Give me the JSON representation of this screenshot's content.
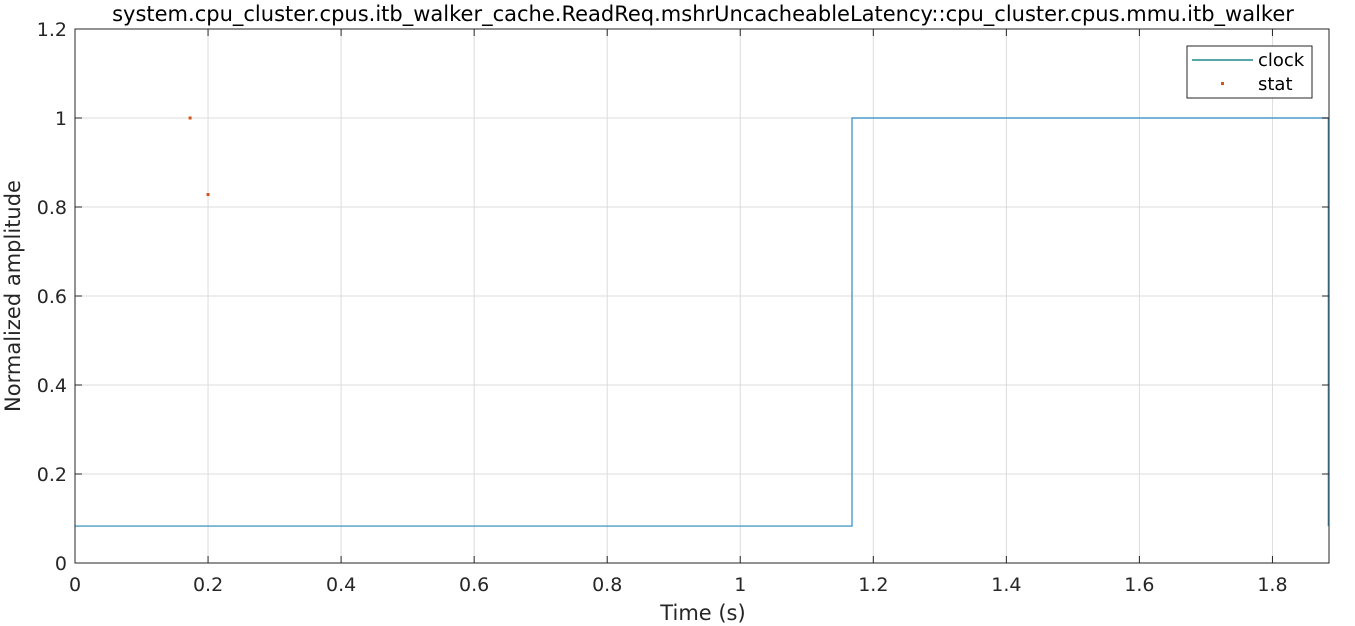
{
  "chart_data": {
    "type": "line",
    "title": "system.cpu_cluster.cpus.itb_walker_cache.ReadReq.mshrUncacheableLatency::cpu_cluster.cpus.mmu.itb_walker",
    "xlabel": "Time (s)",
    "ylabel": "Normalized amplitude",
    "xlim": [
      0,
      1.885
    ],
    "ylim": [
      0,
      1.2
    ],
    "xticks": [
      0,
      0.2,
      0.4,
      0.6,
      0.8,
      1,
      1.2,
      1.4,
      1.6,
      1.8
    ],
    "xtick_labels": [
      "0",
      "0.2",
      "0.4",
      "0.6",
      "0.8",
      "1",
      "1.2",
      "1.4",
      "1.6",
      "1.8"
    ],
    "yticks": [
      0,
      0.2,
      0.4,
      0.6,
      0.8,
      1,
      1.2
    ],
    "ytick_labels": [
      "0",
      "0.2",
      "0.4",
      "0.6",
      "0.8",
      "1",
      "1.2"
    ],
    "grid": true,
    "legend_position": "top-right",
    "series": [
      {
        "name": "clock",
        "style": "step-line",
        "color": "#4a9cc8",
        "legend_color": "#1f8a8a",
        "x": [
          0,
          1.168,
          1.168,
          1.884,
          1.884
        ],
        "y": [
          0.083,
          0.083,
          1.0,
          1.0,
          0.083
        ]
      },
      {
        "name": "stat",
        "style": "points",
        "color": "#d95319",
        "x": [
          0.173,
          0.2
        ],
        "y": [
          1.0,
          0.828
        ]
      }
    ]
  }
}
